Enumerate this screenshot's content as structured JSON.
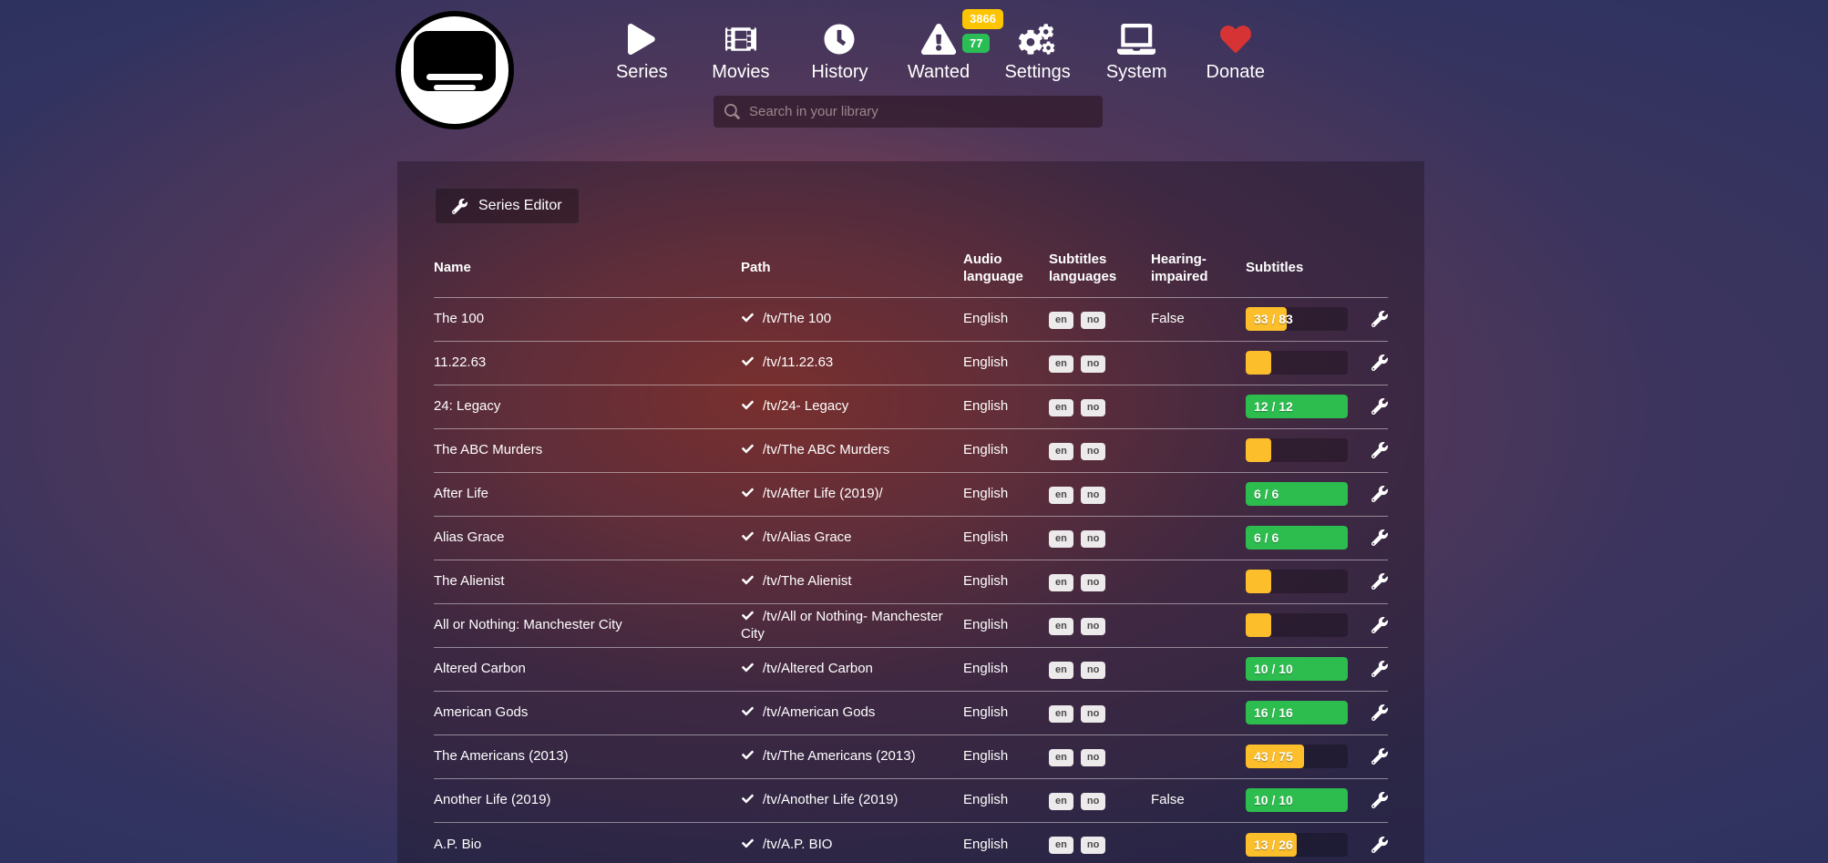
{
  "nav": {
    "items": [
      {
        "label": "Series",
        "icon": "play-icon"
      },
      {
        "label": "Movies",
        "icon": "film-icon"
      },
      {
        "label": "History",
        "icon": "clock-icon"
      },
      {
        "label": "Wanted",
        "icon": "warning-icon",
        "badges": [
          {
            "value": "3866",
            "color": "#fdc400"
          },
          {
            "value": "77",
            "color": "#2abd56"
          }
        ]
      },
      {
        "label": "Settings",
        "icon": "gears-icon"
      },
      {
        "label": "System",
        "icon": "laptop-icon"
      },
      {
        "label": "Donate",
        "icon": "heart-icon",
        "icon_color": "#d63434"
      }
    ]
  },
  "search": {
    "placeholder": "Search in your library"
  },
  "toolbar": {
    "series_editor_label": "Series Editor"
  },
  "table": {
    "headers": [
      "Name",
      "Path",
      "Audio language",
      "Subtitles languages",
      "Hearing-impaired",
      "Subtitles"
    ],
    "rows": [
      {
        "name": "The 100",
        "path": "/tv/The 100",
        "audio": "English",
        "languages": [
          "en",
          "no"
        ],
        "hearing_impaired": "False",
        "subtitles": {
          "label": "33 / 83",
          "percent": 40,
          "status": "warning"
        }
      },
      {
        "name": "11.22.63",
        "path": "/tv/11.22.63",
        "audio": "English",
        "languages": [
          "en",
          "no"
        ],
        "hearing_impaired": "",
        "subtitles": {
          "label": "",
          "percent": 25,
          "status": "warning"
        }
      },
      {
        "name": "24: Legacy",
        "path": "/tv/24- Legacy",
        "audio": "English",
        "languages": [
          "en",
          "no"
        ],
        "hearing_impaired": "",
        "subtitles": {
          "label": "12 / 12",
          "percent": 100,
          "status": "success"
        }
      },
      {
        "name": "The ABC Murders",
        "path": "/tv/The ABC Murders",
        "audio": "English",
        "languages": [
          "en",
          "no"
        ],
        "hearing_impaired": "",
        "subtitles": {
          "label": "",
          "percent": 25,
          "status": "warning"
        }
      },
      {
        "name": "After Life",
        "path": "/tv/After Life (2019)/",
        "audio": "English",
        "languages": [
          "en",
          "no"
        ],
        "hearing_impaired": "",
        "subtitles": {
          "label": "6 / 6",
          "percent": 100,
          "status": "success"
        }
      },
      {
        "name": "Alias Grace",
        "path": "/tv/Alias Grace",
        "audio": "English",
        "languages": [
          "en",
          "no"
        ],
        "hearing_impaired": "",
        "subtitles": {
          "label": "6 / 6",
          "percent": 100,
          "status": "success"
        }
      },
      {
        "name": "The Alienist",
        "path": "/tv/The Alienist",
        "audio": "English",
        "languages": [
          "en",
          "no"
        ],
        "hearing_impaired": "",
        "subtitles": {
          "label": "",
          "percent": 25,
          "status": "warning"
        }
      },
      {
        "name": "All or Nothing: Manchester City",
        "path": "/tv/All or Nothing- Manchester City",
        "audio": "English",
        "languages": [
          "en",
          "no"
        ],
        "hearing_impaired": "",
        "subtitles": {
          "label": "",
          "percent": 25,
          "status": "warning"
        }
      },
      {
        "name": "Altered Carbon",
        "path": "/tv/Altered Carbon",
        "audio": "English",
        "languages": [
          "en",
          "no"
        ],
        "hearing_impaired": "",
        "subtitles": {
          "label": "10 / 10",
          "percent": 100,
          "status": "success"
        }
      },
      {
        "name": "American Gods",
        "path": "/tv/American Gods",
        "audio": "English",
        "languages": [
          "en",
          "no"
        ],
        "hearing_impaired": "",
        "subtitles": {
          "label": "16 / 16",
          "percent": 100,
          "status": "success"
        }
      },
      {
        "name": "The Americans (2013)",
        "path": "/tv/The Americans (2013)",
        "audio": "English",
        "languages": [
          "en",
          "no"
        ],
        "hearing_impaired": "",
        "subtitles": {
          "label": "43 / 75",
          "percent": 57,
          "status": "warning"
        }
      },
      {
        "name": "Another Life (2019)",
        "path": "/tv/Another Life (2019)",
        "audio": "English",
        "languages": [
          "en",
          "no"
        ],
        "hearing_impaired": "False",
        "subtitles": {
          "label": "10 / 10",
          "percent": 100,
          "status": "success"
        }
      },
      {
        "name": "A.P. Bio",
        "path": "/tv/A.P. BIO",
        "audio": "English",
        "languages": [
          "en",
          "no"
        ],
        "hearing_impaired": "",
        "subtitles": {
          "label": "13 / 26",
          "percent": 50,
          "status": "warning"
        }
      }
    ]
  },
  "colors": {
    "warning": "#fcbe2b",
    "success": "#2dbd4f",
    "heart": "#d63434",
    "badge_yellow": "#fdc400",
    "badge_green": "#2abd56"
  }
}
